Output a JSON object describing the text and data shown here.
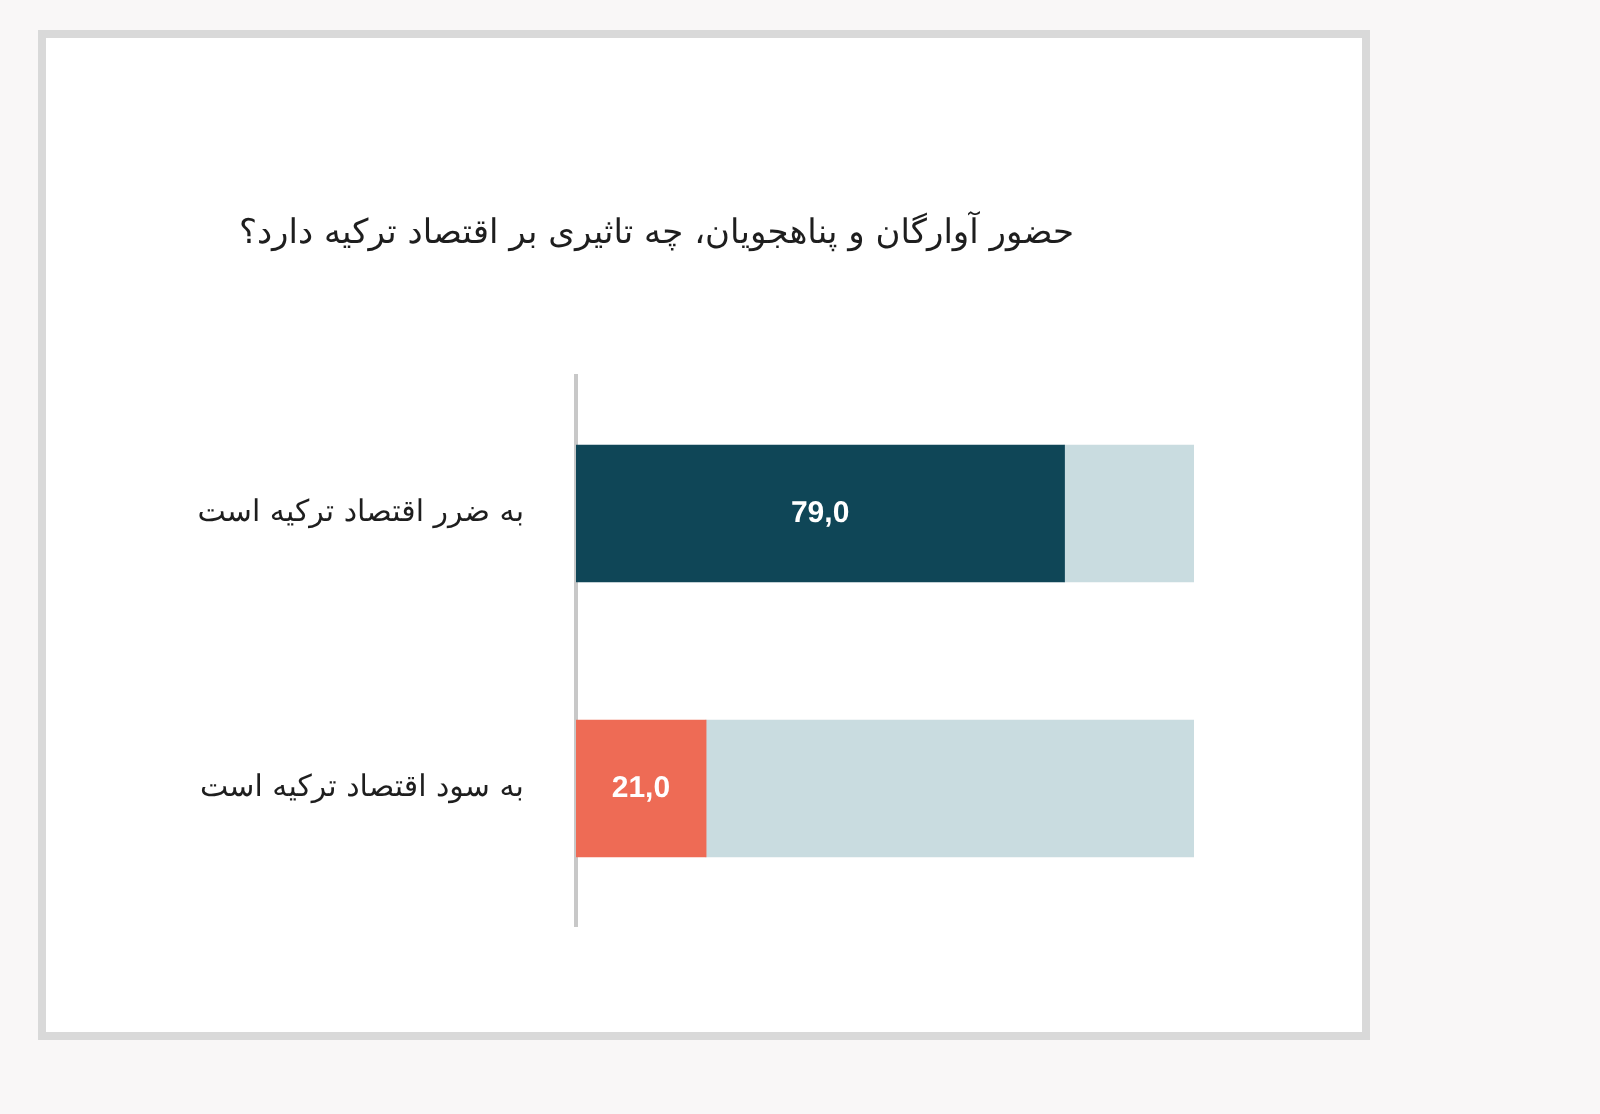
{
  "chart_data": {
    "type": "bar",
    "orientation": "horizontal",
    "stacked": true,
    "title": "حضور آوارگان و پناهجویان، چه تاثیری بر اقتصاد ترکیه دارد؟",
    "categories": [
      "به ضرر اقتصاد ترکیه است",
      "به سود اقتصاد ترکیه است"
    ],
    "series": [
      {
        "colors": [
          "#0f4657",
          "#ee6b55"
        ],
        "values": [
          79.0,
          21.0
        ],
        "value_labels": [
          "79,0",
          "21,0"
        ]
      },
      {
        "color": "#c9dce0",
        "values": [
          21.0,
          79.0
        ]
      }
    ],
    "xlim": [
      0,
      100
    ],
    "tick_labels": "y"
  }
}
